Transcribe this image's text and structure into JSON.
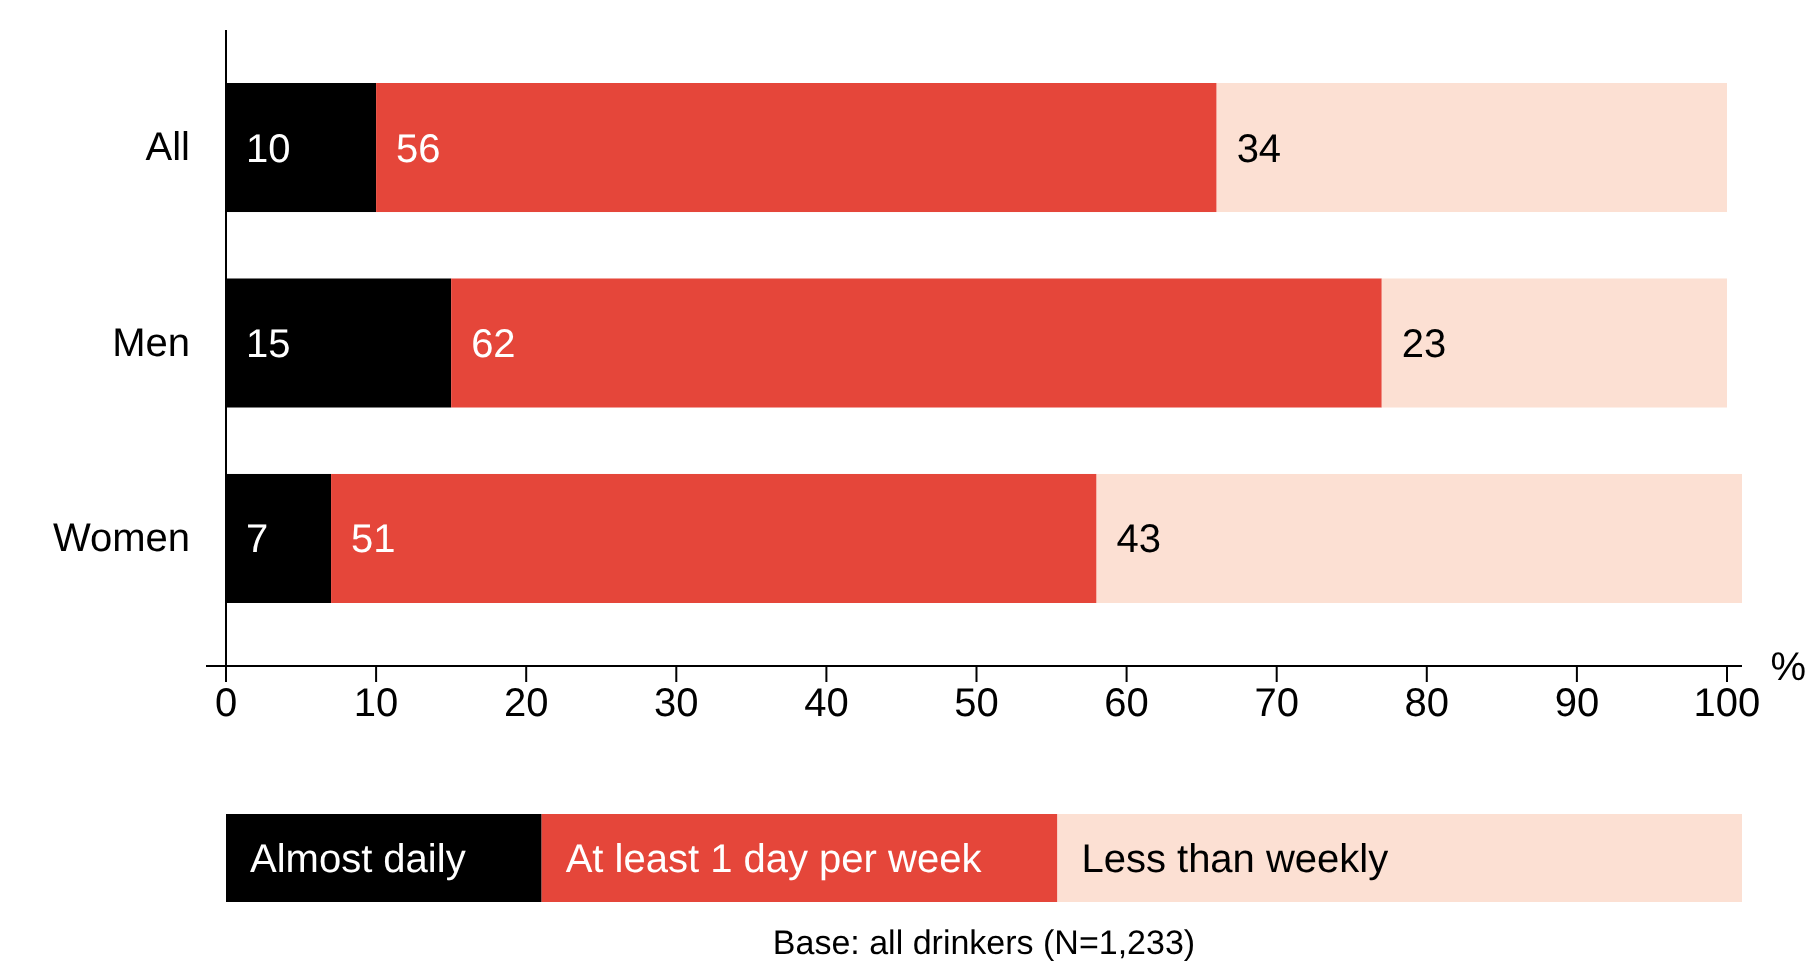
{
  "chart_data": {
    "type": "bar",
    "orientation": "horizontal",
    "stacked": true,
    "data_labels": true,
    "legend": "bottom",
    "xlabel": "%",
    "categories": [
      "All",
      "Men",
      "Women"
    ],
    "series": [
      {
        "name": "Almost daily",
        "color": "#000000",
        "values": [
          10,
          15,
          7
        ]
      },
      {
        "name": "At least 1 day per week",
        "color": "#e5463a",
        "values": [
          56,
          62,
          51
        ]
      },
      {
        "name": "Less than weekly",
        "color": "#fce0d3",
        "values": [
          34,
          23,
          43
        ]
      }
    ],
    "xlim": [
      0,
      101
    ],
    "xticks": [
      0,
      10,
      20,
      30,
      40,
      50,
      60,
      70,
      80,
      90,
      100
    ],
    "annotations": [
      "Base: all drinkers (N=1,233)"
    ]
  }
}
